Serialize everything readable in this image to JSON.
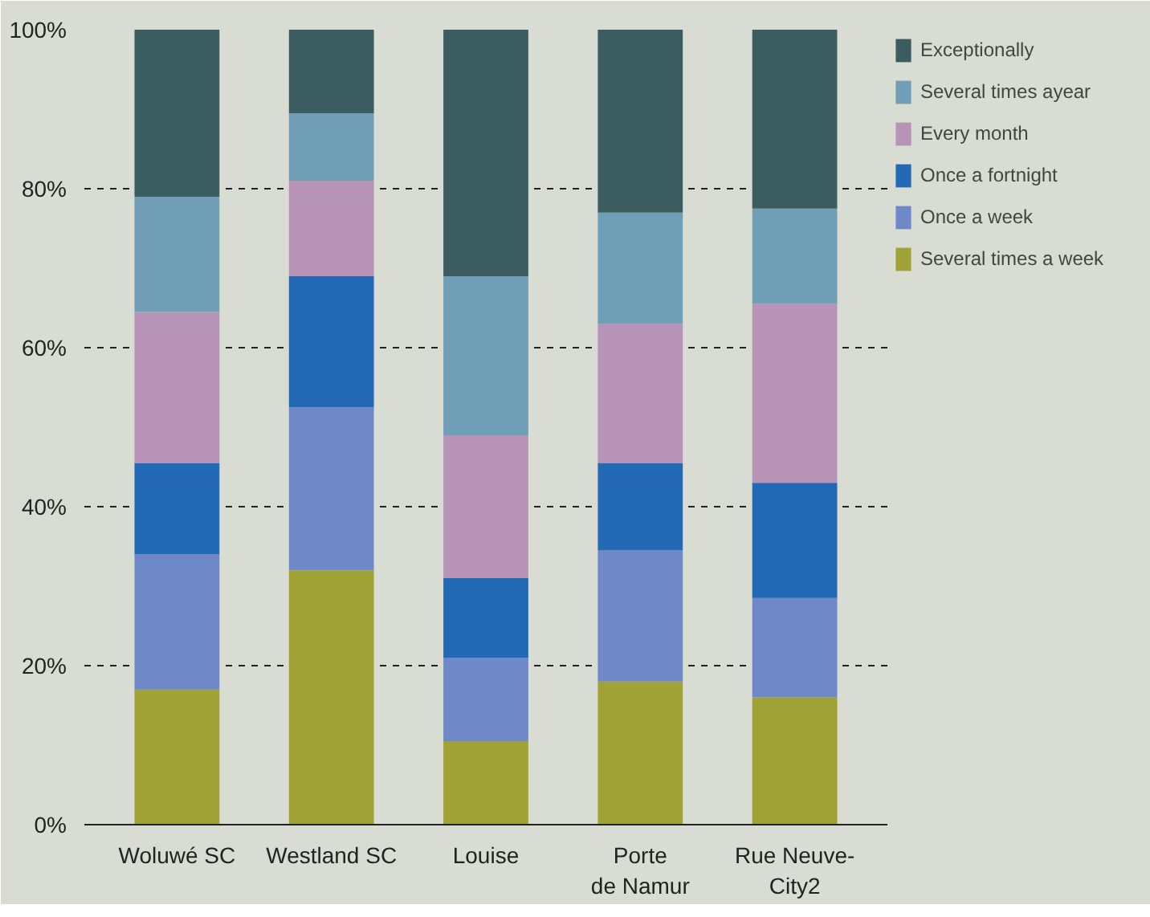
{
  "chart_data": {
    "type": "bar",
    "stacked": true,
    "categories": [
      "Woluwé SC",
      "Westland SC",
      "Louise",
      "Porte\nde Namur",
      "Rue Neuve-\nCity2"
    ],
    "series": [
      {
        "name": "Several times a week",
        "color": "#a0a235",
        "values": [
          17,
          32,
          10.5,
          18,
          16
        ]
      },
      {
        "name": "Once a week",
        "color": "#6f89c8",
        "values": [
          17,
          20.5,
          10.5,
          16.5,
          12.5
        ]
      },
      {
        "name": "Once a fortnight",
        "color": "#2369b5",
        "values": [
          11.5,
          16.5,
          10,
          11,
          14.5
        ]
      },
      {
        "name": "Every month",
        "color": "#b893b8",
        "values": [
          19,
          12,
          18,
          17.5,
          22.5
        ]
      },
      {
        "name": "Several times ayear",
        "color": "#719eb7",
        "values": [
          14.5,
          8.5,
          20,
          14,
          12
        ]
      },
      {
        "name": "Exceptionally",
        "color": "#3c5d60",
        "values": [
          21,
          10.5,
          31,
          23,
          22.5
        ]
      }
    ],
    "ylim": [
      0,
      100
    ],
    "yticks": [
      {
        "value": 0,
        "label": "0%"
      },
      {
        "value": 20,
        "label": "20%"
      },
      {
        "value": 40,
        "label": "40%"
      },
      {
        "value": 60,
        "label": "60%"
      },
      {
        "value": 80,
        "label": "80%"
      },
      {
        "value": 100,
        "label": "100%"
      }
    ],
    "grid": "y",
    "legend": "right"
  }
}
